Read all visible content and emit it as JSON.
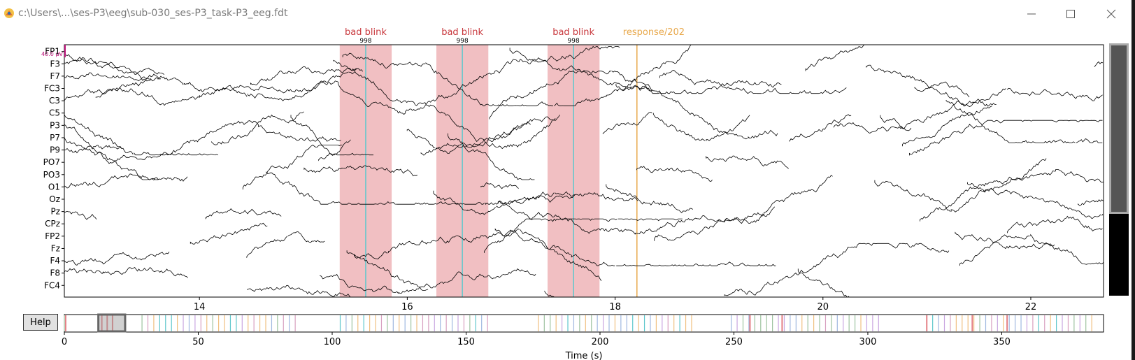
{
  "window": {
    "title": "c:\\Users\\...\\ses-P3\\eeg\\sub-030_ses-P3_task-P3_eeg.fdt",
    "minimize_label": "—",
    "maximize_label": "☐",
    "close_label": "✕"
  },
  "help_label": "Help",
  "scale_label": "40.0 µV",
  "xlabel": "Time (s)",
  "channels": [
    "FP1",
    "F3",
    "F7",
    "FC3",
    "C3",
    "C5",
    "P3",
    "P7",
    "P9",
    "PO7",
    "PO3",
    "O1",
    "Oz",
    "Pz",
    "CPz",
    "FP2",
    "Fz",
    "F4",
    "F8",
    "FC4"
  ],
  "main_axis": {
    "xmin": 12.7,
    "xmax": 22.7,
    "ticks": [
      14,
      16,
      18,
      20,
      22
    ]
  },
  "annotations": [
    {
      "label": "bad blink",
      "start": 15.35,
      "end": 15.85,
      "event_time": 15.6,
      "event_label": "998",
      "color": "#e48086"
    },
    {
      "label": "bad blink",
      "start": 16.28,
      "end": 16.78,
      "event_time": 16.53,
      "event_label": "998",
      "color": "#e48086"
    },
    {
      "label": "bad blink",
      "start": 17.35,
      "end": 17.85,
      "event_time": 17.6,
      "event_label": "998",
      "color": "#e48086"
    },
    {
      "label": "response/202",
      "start": 18.21,
      "end": 18.21,
      "color": "#e8a84b"
    }
  ],
  "overview": {
    "xmin": 0,
    "xmax": 388,
    "ticks": [
      0,
      50,
      100,
      150,
      200,
      250,
      300,
      350
    ],
    "view_start": 12.7,
    "view_end": 22.7
  },
  "colors": {
    "bad_annotation": "#e48086",
    "response_annotation": "#e8a84b",
    "event_line": "#5fc7cc",
    "scale_bar": "#c0177e",
    "trace": "#000000"
  }
}
